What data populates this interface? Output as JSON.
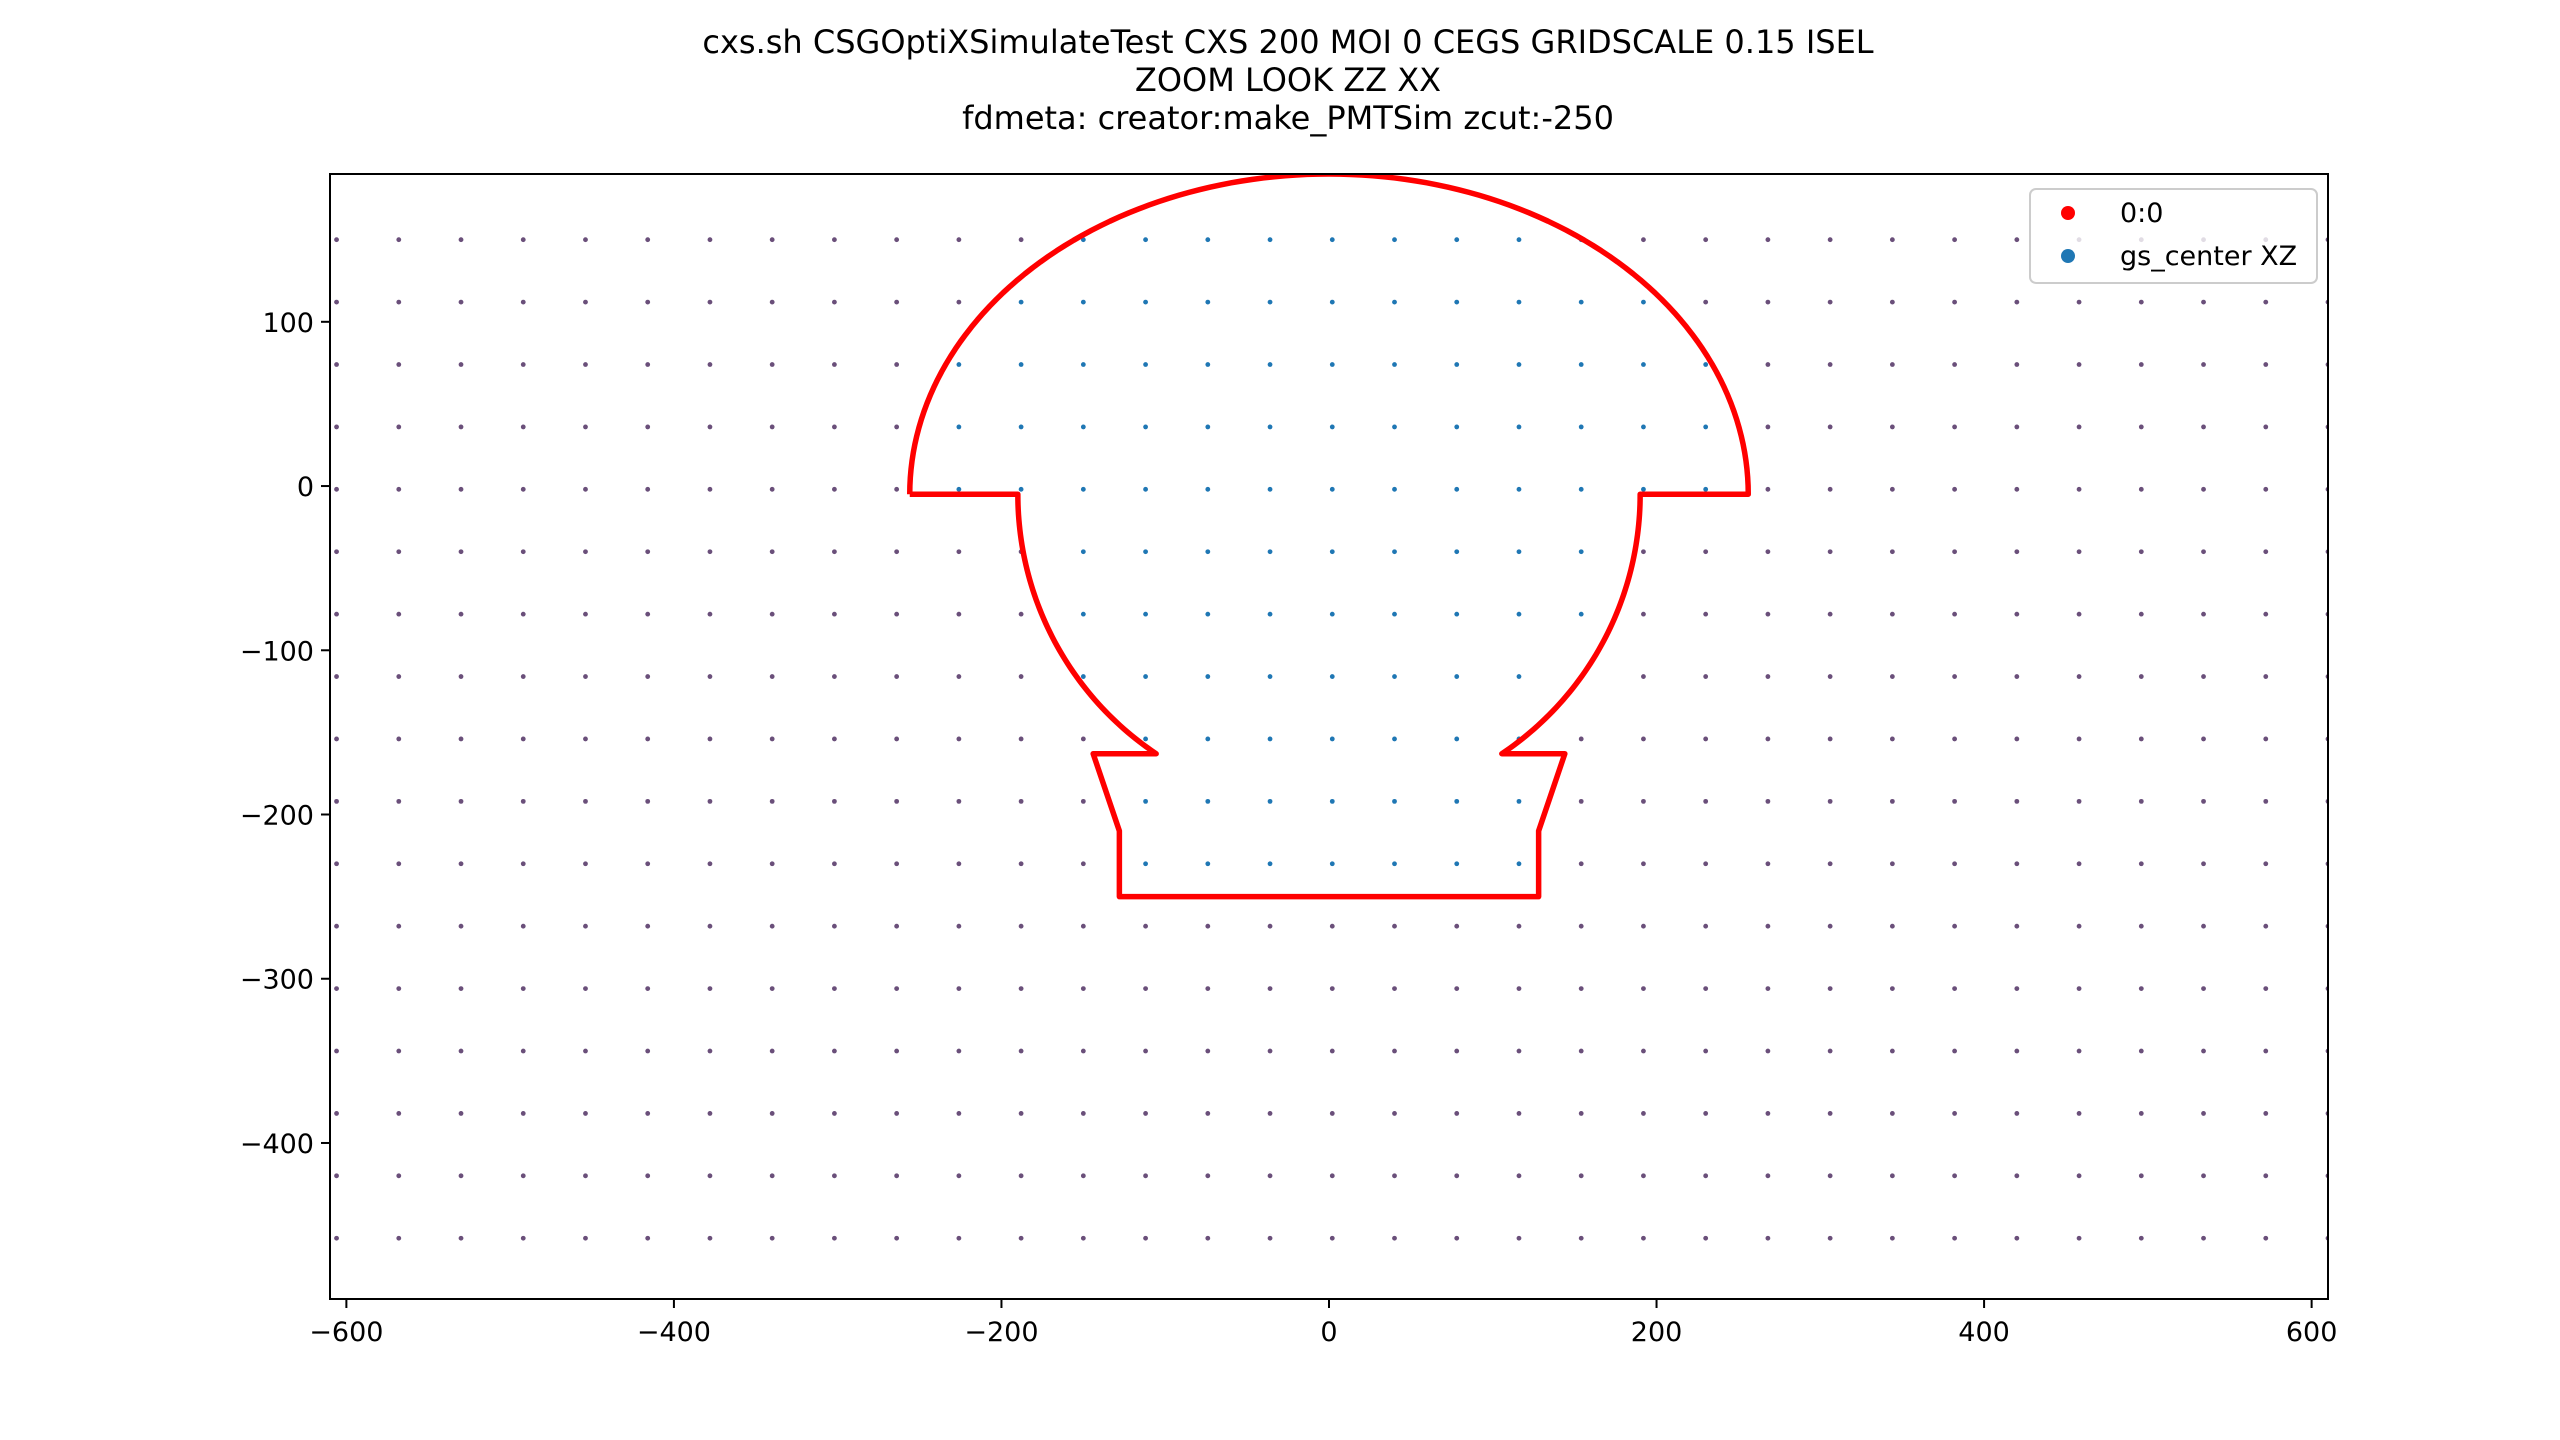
{
  "chart_data": {
    "type": "scatter",
    "title_lines": [
      "cxs.sh CSGOptiXSimulateTest CXS 200 MOI 0 CEGS  GRIDSCALE 0.15 ISEL",
      "ZOOM  LOOK  ZZ  XX",
      "fdmeta: creator:make_PMTSim zcut:-250"
    ],
    "xlabel": "",
    "ylabel": "",
    "xlim": [
      -610,
      610
    ],
    "ylim": [
      -495,
      190
    ],
    "xticks": [
      -600,
      -400,
      -200,
      0,
      200,
      400,
      600
    ],
    "xtick_labels": [
      "−600",
      "−400",
      "−200",
      "0",
      "200",
      "400",
      "600"
    ],
    "yticks": [
      -400,
      -300,
      -200,
      -100,
      0,
      100
    ],
    "ytick_labels": [
      "−400",
      "−300",
      "−200",
      "−100",
      "0",
      "100"
    ],
    "grid": false,
    "legend": {
      "location": "upper right",
      "entries": [
        {
          "label": "0:0",
          "color": "#ff0000"
        },
        {
          "label": "gs_center XZ",
          "color": "#1f77b4"
        }
      ]
    },
    "gs_center_grid": {
      "x_start": -606,
      "x_step": 38,
      "x_count": 33,
      "z_start": -458,
      "z_step": 38,
      "z_count": 17,
      "color_outside": "#6a4f7a",
      "color_inside": "#1f77b4"
    },
    "outline": {
      "color": "#ff0000",
      "polyline": [
        [
          -128,
          -250
        ],
        [
          128,
          -250
        ],
        [
          128,
          -210
        ],
        [
          144,
          -163
        ],
        [
          108,
          -163
        ],
        [
          190,
          -5
        ],
        [
          256,
          -5
        ],
        [
          256,
          -5
        ],
        [
          -256,
          -5
        ],
        [
          -190,
          -5
        ],
        [
          -108,
          -163
        ],
        [
          -144,
          -163
        ],
        [
          -128,
          -210
        ],
        [
          -128,
          -250
        ]
      ],
      "dome": {
        "center_z": -5,
        "semi_axis_x": 256,
        "semi_axis_z": 195
      },
      "bulb": {
        "center_z": -5,
        "radius": 190
      }
    }
  }
}
